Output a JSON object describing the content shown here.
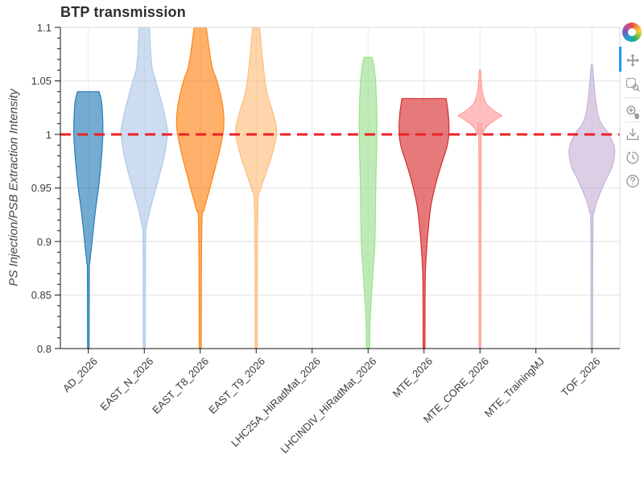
{
  "title": "BTP transmission",
  "y_axis": {
    "label": "PS Injection/PSB Extraction Intensity",
    "tick_labels": [
      "1.1",
      "1.05",
      "1",
      "0.95",
      "0.9",
      "0.85",
      "0.8"
    ],
    "tick_values": [
      1.1,
      1.05,
      1.0,
      0.95,
      0.9,
      0.85,
      0.8
    ],
    "minor_tick_step": 0.01,
    "range": [
      0.8,
      1.1
    ]
  },
  "x_axis": {
    "categories": [
      "AD_2026",
      "EAST_N_2026",
      "EAST_T8_2026",
      "EAST_T9_2026",
      "LHC25A_HiRadMat_2026",
      "LHCINDIV_HiRadMat_2026",
      "MTE_2026",
      "MTE_CORE_2026",
      "MTE_TrainingMJ",
      "TOF_2026"
    ],
    "label_rotation_deg": -45
  },
  "reference_line": {
    "value": 1.0,
    "color": "#ed2024",
    "dash": [
      13,
      8
    ],
    "width": 3
  },
  "colors": {
    "grid": "#e2e2e2",
    "category_grid": "#e8e8e8",
    "border": "#dadada",
    "axis": "#141414",
    "tick_label": "#3b3b3b",
    "title": "#2e2e2e",
    "active_tool_bar": "#1e9ceb",
    "tool_icon": "#979797"
  },
  "toolbar": {
    "logo": "bokeh-logo",
    "active_tool": "pan",
    "tools": [
      "pan",
      "box-zoom",
      "wheel-zoom",
      "save",
      "reset",
      "help"
    ]
  },
  "chart_data": {
    "type": "violin",
    "title": "BTP transmission",
    "xlabel": "",
    "ylabel": "PS Injection/PSB Extraction Intensity",
    "ylim": [
      0.8,
      1.1
    ],
    "grid": true,
    "legend": "none",
    "reference_line_y": 1.0,
    "categories": [
      "AD_2026",
      "EAST_N_2026",
      "EAST_T8_2026",
      "EAST_T9_2026",
      "LHC25A_HiRadMat_2026",
      "LHCINDIV_HiRadMat_2026",
      "MTE_2026",
      "MTE_CORE_2026",
      "MTE_TrainingMJ",
      "TOF_2026"
    ],
    "series": [
      {
        "name": "AD_2026",
        "color": "#1f77b4",
        "shape": "flat-top",
        "top": 1.04,
        "bottom": 0.8,
        "profile": [
          [
            1.04,
            13.5
          ],
          [
            1.03,
            16.5
          ],
          [
            1.015,
            17.8
          ],
          [
            1.0,
            18.0
          ],
          [
            0.98,
            16.5
          ],
          [
            0.96,
            14.0
          ],
          [
            0.95,
            12.6
          ],
          [
            0.93,
            9.0
          ],
          [
            0.91,
            6.0
          ],
          [
            0.895,
            4.0
          ],
          [
            0.88,
            1.8
          ],
          [
            0.87,
            1.2
          ],
          [
            0.8,
            1.0
          ]
        ]
      },
      {
        "name": "EAST_N_2026",
        "color": "#aec7e8",
        "shape": "clipped-top",
        "top": 1.1,
        "bottom": 0.8,
        "profile": [
          [
            1.1,
            6.5
          ],
          [
            1.065,
            9.2
          ],
          [
            1.05,
            14.2
          ],
          [
            1.027,
            22.5
          ],
          [
            1.01,
            27.5
          ],
          [
            1.0,
            28.8
          ],
          [
            0.977,
            24.0
          ],
          [
            0.952,
            15.3
          ],
          [
            0.935,
            9.0
          ],
          [
            0.915,
            3.0
          ],
          [
            0.9,
            1.6
          ],
          [
            0.8,
            1.2
          ]
        ]
      },
      {
        "name": "EAST_T8_2026",
        "color": "#ff7f0e",
        "shape": "clipped-top",
        "top": 1.1,
        "bottom": 0.8,
        "profile": [
          [
            1.1,
            7.5
          ],
          [
            1.065,
            14.2
          ],
          [
            1.05,
            20.8
          ],
          [
            1.027,
            27.8
          ],
          [
            1.007,
            29.2
          ],
          [
            0.985,
            24.0
          ],
          [
            0.952,
            12.8
          ],
          [
            0.93,
            5.0
          ],
          [
            0.915,
            2.0
          ],
          [
            0.8,
            1.2
          ]
        ]
      },
      {
        "name": "EAST_T9_2026",
        "color": "#ffbb78",
        "shape": "clipped-top",
        "top": 1.1,
        "bottom": 0.8,
        "profile": [
          [
            1.1,
            4.2
          ],
          [
            1.046,
            11.7
          ],
          [
            1.021,
            20.5
          ],
          [
            1.003,
            25.5
          ],
          [
            0.982,
            20.0
          ],
          [
            0.964,
            12.3
          ],
          [
            0.949,
            5.8
          ],
          [
            0.929,
            2.0
          ],
          [
            0.8,
            1.2
          ]
        ]
      },
      {
        "name": "LHC25A_HiRadMat_2026",
        "color": "#2ca02c",
        "empty": true,
        "profile": []
      },
      {
        "name": "LHCINDIV_HiRadMat_2026",
        "color": "#98df8a",
        "shape": "flat-top",
        "top": 1.072,
        "bottom": 0.8,
        "profile": [
          [
            1.072,
            5.0
          ],
          [
            1.06,
            8.0
          ],
          [
            1.04,
            10.0
          ],
          [
            1.005,
            11.0
          ],
          [
            0.95,
            9.5
          ],
          [
            0.9,
            8.5
          ],
          [
            0.87,
            6.0
          ],
          [
            0.825,
            2.5
          ],
          [
            0.8,
            2.0
          ]
        ]
      },
      {
        "name": "MTE_2026",
        "color": "#d62728",
        "shape": "flat-top",
        "top": 1.0335,
        "bottom": 0.8,
        "profile": [
          [
            1.0335,
            27.5
          ],
          [
            1.02,
            30.0
          ],
          [
            1.005,
            31.0
          ],
          [
            0.99,
            29.0
          ],
          [
            0.973,
            22.0
          ],
          [
            0.955,
            15.0
          ],
          [
            0.935,
            9.0
          ],
          [
            0.917,
            6.0
          ],
          [
            0.895,
            3.5
          ],
          [
            0.865,
            1.5
          ],
          [
            0.8,
            1.2
          ]
        ]
      },
      {
        "name": "MTE_CORE_2026",
        "color": "#ff9896",
        "shape": "spike",
        "top": 1.06,
        "bottom": 0.8,
        "profile": [
          [
            1.06,
            0.8
          ],
          [
            1.05,
            1.5
          ],
          [
            1.04,
            3.0
          ],
          [
            1.03,
            7.0
          ],
          [
            1.024,
            14.0
          ],
          [
            1.019,
            24.0
          ],
          [
            1.0175,
            27.0
          ],
          [
            1.016,
            24.0
          ],
          [
            1.011,
            14.0
          ],
          [
            1.006,
            7.0
          ],
          [
            1.0,
            3.0
          ],
          [
            0.995,
            1.5
          ],
          [
            0.8,
            1.0
          ]
        ]
      },
      {
        "name": "MTE_TrainingMJ",
        "color": "#9467bd",
        "empty": true,
        "profile": []
      },
      {
        "name": "TOF_2026",
        "color": "#c5b0d5",
        "shape": "spike",
        "top": 1.065,
        "bottom": 0.8,
        "profile": [
          [
            1.065,
            0.8
          ],
          [
            1.03,
            5.0
          ],
          [
            1.012,
            10.5
          ],
          [
            1.001,
            20.5
          ],
          [
            0.99,
            27.2
          ],
          [
            0.982,
            28.3
          ],
          [
            0.97,
            25.3
          ],
          [
            0.9585,
            18.0
          ],
          [
            0.947,
            11.3
          ],
          [
            0.937,
            6.2
          ],
          [
            0.927,
            2.8
          ],
          [
            0.915,
            1.3
          ],
          [
            0.8,
            1.0
          ]
        ]
      }
    ]
  }
}
